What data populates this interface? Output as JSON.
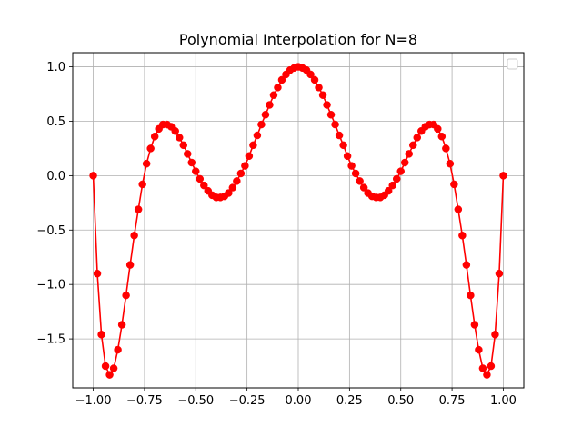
{
  "chart_data": {
    "type": "line",
    "title": "Polynomial Interpolation for N=8",
    "xlabel": "",
    "ylabel": "",
    "xlim": [
      -1.1,
      1.1
    ],
    "ylim": [
      -1.95,
      1.13
    ],
    "x_ticks": [
      -1.0,
      -0.75,
      -0.5,
      -0.25,
      0.0,
      0.25,
      0.5,
      0.75,
      1.0
    ],
    "x_tick_labels": [
      "−1.00",
      "−0.75",
      "−0.50",
      "−0.25",
      "0.00",
      "0.25",
      "0.50",
      "0.75",
      "1.00"
    ],
    "y_ticks": [
      -1.5,
      -1.0,
      -0.5,
      0.0,
      0.5,
      1.0
    ],
    "y_tick_labels": [
      "−1.5",
      "−1.0",
      "−0.5",
      "0.0",
      "0.5",
      "1.0"
    ],
    "grid": true,
    "legend": "upper-right, empty",
    "series": [
      {
        "color": "#ff0000",
        "marker": "circle",
        "points": [
          [
            -1.0,
            0.0
          ],
          [
            -0.98,
            -0.9
          ],
          [
            -0.96,
            -1.46
          ],
          [
            -0.94,
            -1.75
          ],
          [
            -0.92,
            -1.83
          ],
          [
            -0.9,
            -1.77
          ],
          [
            -0.88,
            -1.6
          ],
          [
            -0.86,
            -1.37
          ],
          [
            -0.84,
            -1.1
          ],
          [
            -0.82,
            -0.82
          ],
          [
            -0.8,
            -0.55
          ],
          [
            -0.78,
            -0.31
          ],
          [
            -0.76,
            -0.08
          ],
          [
            -0.74,
            0.11
          ],
          [
            -0.72,
            0.25
          ],
          [
            -0.7,
            0.36
          ],
          [
            -0.68,
            0.43
          ],
          [
            -0.66,
            0.47
          ],
          [
            -0.64,
            0.47
          ],
          [
            -0.62,
            0.45
          ],
          [
            -0.6,
            0.41
          ],
          [
            -0.58,
            0.35
          ],
          [
            -0.56,
            0.28
          ],
          [
            -0.54,
            0.2
          ],
          [
            -0.52,
            0.12
          ],
          [
            -0.5,
            0.04
          ],
          [
            -0.48,
            -0.03
          ],
          [
            -0.46,
            -0.09
          ],
          [
            -0.44,
            -0.14
          ],
          [
            -0.42,
            -0.18
          ],
          [
            -0.4,
            -0.2
          ],
          [
            -0.38,
            -0.2
          ],
          [
            -0.36,
            -0.19
          ],
          [
            -0.34,
            -0.16
          ],
          [
            -0.32,
            -0.11
          ],
          [
            -0.3,
            -0.05
          ],
          [
            -0.28,
            0.02
          ],
          [
            -0.26,
            0.09
          ],
          [
            -0.24,
            0.18
          ],
          [
            -0.22,
            0.28
          ],
          [
            -0.2,
            0.37
          ],
          [
            -0.18,
            0.47
          ],
          [
            -0.16,
            0.56
          ],
          [
            -0.14,
            0.65
          ],
          [
            -0.12,
            0.74
          ],
          [
            -0.1,
            0.81
          ],
          [
            -0.08,
            0.88
          ],
          [
            -0.06,
            0.93
          ],
          [
            -0.04,
            0.97
          ],
          [
            -0.02,
            0.99
          ],
          [
            0.0,
            1.0
          ],
          [
            0.02,
            0.99
          ],
          [
            0.04,
            0.97
          ],
          [
            0.06,
            0.93
          ],
          [
            0.08,
            0.88
          ],
          [
            0.1,
            0.81
          ],
          [
            0.12,
            0.74
          ],
          [
            0.14,
            0.65
          ],
          [
            0.16,
            0.56
          ],
          [
            0.18,
            0.47
          ],
          [
            0.2,
            0.37
          ],
          [
            0.22,
            0.28
          ],
          [
            0.24,
            0.18
          ],
          [
            0.26,
            0.09
          ],
          [
            0.28,
            0.02
          ],
          [
            0.3,
            -0.05
          ],
          [
            0.32,
            -0.11
          ],
          [
            0.34,
            -0.16
          ],
          [
            0.36,
            -0.19
          ],
          [
            0.38,
            -0.2
          ],
          [
            0.4,
            -0.2
          ],
          [
            0.42,
            -0.18
          ],
          [
            0.44,
            -0.14
          ],
          [
            0.46,
            -0.09
          ],
          [
            0.48,
            -0.03
          ],
          [
            0.5,
            0.04
          ],
          [
            0.52,
            0.12
          ],
          [
            0.54,
            0.2
          ],
          [
            0.56,
            0.28
          ],
          [
            0.58,
            0.35
          ],
          [
            0.6,
            0.41
          ],
          [
            0.62,
            0.45
          ],
          [
            0.64,
            0.47
          ],
          [
            0.66,
            0.47
          ],
          [
            0.68,
            0.43
          ],
          [
            0.7,
            0.36
          ],
          [
            0.72,
            0.25
          ],
          [
            0.74,
            0.11
          ],
          [
            0.76,
            -0.08
          ],
          [
            0.78,
            -0.31
          ],
          [
            0.8,
            -0.55
          ],
          [
            0.82,
            -0.82
          ],
          [
            0.84,
            -1.1
          ],
          [
            0.86,
            -1.37
          ],
          [
            0.88,
            -1.6
          ],
          [
            0.9,
            -1.77
          ],
          [
            0.92,
            -1.83
          ],
          [
            0.94,
            -1.75
          ],
          [
            0.96,
            -1.46
          ],
          [
            0.98,
            -0.9
          ],
          [
            1.0,
            0.0
          ]
        ]
      }
    ]
  }
}
